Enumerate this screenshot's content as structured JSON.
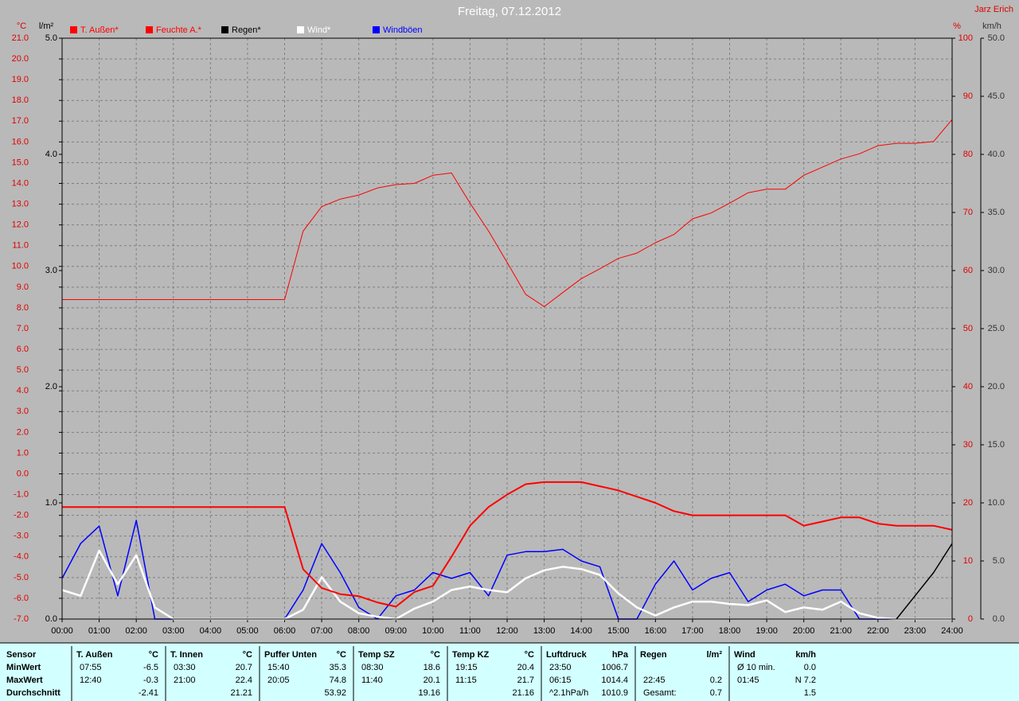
{
  "chart_data": {
    "type": "line",
    "title": "Freitag, 07.12.2012",
    "author": "Jarz Erich",
    "ylabel": "°C",
    "y2label": "%",
    "y3label": "km/h",
    "y4label": "l/m²",
    "grid": true,
    "x": [
      0,
      0.5,
      1,
      1.5,
      2,
      2.5,
      3,
      3.5,
      4,
      4.5,
      5,
      5.5,
      6,
      6.5,
      7,
      7.5,
      8,
      8.5,
      9,
      9.5,
      10,
      10.5,
      11,
      11.5,
      12,
      12.5,
      13,
      13.5,
      14,
      14.5,
      15,
      15.5,
      16,
      16.5,
      17,
      17.5,
      18,
      18.5,
      19,
      19.5,
      20,
      20.5,
      21,
      21.5,
      22,
      22.5,
      23,
      23.5,
      24
    ],
    "xlim": [
      0,
      24
    ],
    "xticks": [
      {
        "value": 0,
        "label": "00:00"
      },
      {
        "value": 1,
        "label": "01:00"
      },
      {
        "value": 2,
        "label": "02:00"
      },
      {
        "value": 3,
        "label": "03:00"
      },
      {
        "value": 4,
        "label": "04:00"
      },
      {
        "value": 5,
        "label": "05:00"
      },
      {
        "value": 6,
        "label": "06:00"
      },
      {
        "value": 7,
        "label": "07:00"
      },
      {
        "value": 8,
        "label": "08:00"
      },
      {
        "value": 9,
        "label": "09:00"
      },
      {
        "value": 10,
        "label": "10:00"
      },
      {
        "value": 11,
        "label": "11:00"
      },
      {
        "value": 12,
        "label": "12:00"
      },
      {
        "value": 13,
        "label": "13:00"
      },
      {
        "value": 14,
        "label": "14:00"
      },
      {
        "value": 15,
        "label": "15:00"
      },
      {
        "value": 16,
        "label": "16:00"
      },
      {
        "value": 17,
        "label": "17:00"
      },
      {
        "value": 18,
        "label": "18:00"
      },
      {
        "value": 19,
        "label": "19:00"
      },
      {
        "value": 20,
        "label": "20:00"
      },
      {
        "value": 21,
        "label": "21:00"
      },
      {
        "value": 22,
        "label": "22:00"
      },
      {
        "value": 23,
        "label": "23:00"
      },
      {
        "value": 24,
        "label": "24:00"
      }
    ],
    "ylim": [
      -7,
      21
    ],
    "yticks": [
      {
        "value": -7,
        "label": "-7.0"
      },
      {
        "value": -6,
        "label": "-6.0"
      },
      {
        "value": -5,
        "label": "-5.0"
      },
      {
        "value": -4,
        "label": "-4.0"
      },
      {
        "value": -3,
        "label": "-3.0"
      },
      {
        "value": -2,
        "label": "-2.0"
      },
      {
        "value": -1,
        "label": "-1.0"
      },
      {
        "value": 0,
        "label": "0.0"
      },
      {
        "value": 1,
        "label": "1.0"
      },
      {
        "value": 2,
        "label": "2.0"
      },
      {
        "value": 3,
        "label": "3.0"
      },
      {
        "value": 4,
        "label": "4.0"
      },
      {
        "value": 5,
        "label": "5.0"
      },
      {
        "value": 6,
        "label": "6.0"
      },
      {
        "value": 7,
        "label": "7.0"
      },
      {
        "value": 8,
        "label": "8.0"
      },
      {
        "value": 9,
        "label": "9.0"
      },
      {
        "value": 10,
        "label": "10.0"
      },
      {
        "value": 11,
        "label": "11.0"
      },
      {
        "value": 12,
        "label": "12.0"
      },
      {
        "value": 13,
        "label": "13.0"
      },
      {
        "value": 14,
        "label": "14.0"
      },
      {
        "value": 15,
        "label": "15.0"
      },
      {
        "value": 16,
        "label": "16.0"
      },
      {
        "value": 17,
        "label": "17.0"
      },
      {
        "value": 18,
        "label": "18.0"
      },
      {
        "value": 19,
        "label": "19.0"
      },
      {
        "value": 20,
        "label": "20.0"
      },
      {
        "value": 21,
        "label": "21.0"
      }
    ],
    "y2lim": [
      0,
      100
    ],
    "y2ticks": [
      0,
      10,
      20,
      30,
      40,
      50,
      60,
      70,
      80,
      90,
      100
    ],
    "y3lim": [
      0,
      50
    ],
    "y3ticks": [
      {
        "value": 0,
        "label": "0.0"
      },
      {
        "value": 5,
        "label": "5.0"
      },
      {
        "value": 10,
        "label": "10.0"
      },
      {
        "value": 15,
        "label": "15.0"
      },
      {
        "value": 20,
        "label": "20.0"
      },
      {
        "value": 25,
        "label": "25.0"
      },
      {
        "value": 30,
        "label": "30.0"
      },
      {
        "value": 35,
        "label": "35.0"
      },
      {
        "value": 40,
        "label": "40.0"
      },
      {
        "value": 45,
        "label": "45.0"
      },
      {
        "value": 50,
        "label": "50.0"
      }
    ],
    "y4lim": [
      0,
      5
    ],
    "y4ticks": [
      {
        "value": 0,
        "label": "0.0"
      },
      {
        "value": 1,
        "label": "1.0"
      },
      {
        "value": 2,
        "label": "2.0"
      },
      {
        "value": 3,
        "label": "3.0"
      },
      {
        "value": 4,
        "label": "4.0"
      },
      {
        "value": 5,
        "label": "5.0"
      }
    ],
    "series": [
      {
        "name": "T. Außen*",
        "color": "#ff0000",
        "axis": "y",
        "values": [
          -1.6,
          -1.6,
          -1.6,
          -1.6,
          -1.6,
          -1.6,
          -1.6,
          -1.6,
          -1.6,
          -1.6,
          -1.6,
          -1.6,
          -1.6,
          -4.6,
          -5.5,
          -5.8,
          -5.9,
          -6.2,
          -6.4,
          -5.7,
          -5.4,
          -4.0,
          -2.5,
          -1.6,
          -1.0,
          -0.5,
          -0.4,
          -0.4,
          -0.4,
          -0.6,
          -0.8,
          -1.1,
          -1.4,
          -1.8,
          -2.0,
          -2.0,
          -2.0,
          -2.0,
          -2.0,
          -2.0,
          -2.5,
          -2.3,
          -2.1,
          -2.1,
          -2.4,
          -2.5,
          -2.5,
          -2.5,
          -2.7
        ]
      },
      {
        "name": "Feuchte A.*",
        "color": "#ff0000",
        "axis": "y2",
        "values": [
          55,
          55,
          55,
          55,
          55,
          55,
          55,
          55,
          55,
          55,
          55,
          55,
          55,
          66.8,
          71,
          72.3,
          73,
          74.2,
          74.8,
          75,
          76.4,
          76.8,
          71.6,
          66.8,
          61.4,
          55.9,
          53.8,
          56.2,
          58.6,
          60.3,
          62.1,
          63,
          64.8,
          66.2,
          68.9,
          69.9,
          71.6,
          73.4,
          74,
          74,
          76.4,
          77.8,
          79.2,
          80.1,
          81.5,
          81.9,
          81.9,
          82.2,
          86
        ]
      },
      {
        "name": "Regen*",
        "color": "#000000",
        "axis": "y4",
        "values": [
          null,
          null,
          null,
          null,
          null,
          null,
          null,
          null,
          null,
          null,
          null,
          null,
          null,
          null,
          null,
          null,
          null,
          null,
          null,
          null,
          null,
          null,
          null,
          null,
          null,
          null,
          null,
          null,
          null,
          null,
          null,
          null,
          null,
          null,
          null,
          null,
          null,
          null,
          null,
          null,
          null,
          null,
          null,
          null,
          null,
          0,
          0.2,
          0.4,
          0.65
        ]
      },
      {
        "name": "Wind*",
        "color": "#ffffff",
        "axis": "y3",
        "values": [
          2.5,
          2.0,
          5.9,
          3.0,
          5.5,
          1.0,
          0,
          0,
          0,
          0,
          0,
          0,
          0,
          0.8,
          3.6,
          1.5,
          0.5,
          0.2,
          0,
          0.9,
          1.5,
          2.5,
          2.8,
          2.5,
          2.3,
          3.5,
          4.2,
          4.5,
          4.3,
          3.8,
          2.2,
          1.0,
          0.3,
          1.0,
          1.5,
          1.5,
          1.3,
          1.2,
          1.6,
          0.6,
          1.0,
          0.8,
          1.5,
          0.5,
          0.1,
          0,
          0,
          0,
          0
        ]
      },
      {
        "name": "Windböen",
        "color": "#0000ff",
        "axis": "y3",
        "values": [
          3.5,
          6.5,
          8.0,
          2.0,
          8.5,
          0,
          0,
          0,
          0,
          0,
          0,
          0,
          0,
          2.5,
          6.5,
          4.0,
          1.0,
          0,
          2.0,
          2.5,
          4.0,
          3.5,
          4.0,
          2.0,
          5.5,
          5.8,
          5.8,
          6.0,
          5.0,
          4.5,
          0,
          0,
          3.0,
          5.0,
          2.5,
          3.5,
          4.0,
          1.5,
          2.5,
          3.0,
          2.0,
          2.5,
          2.5,
          0,
          0,
          0,
          0,
          0,
          0
        ]
      }
    ]
  },
  "table": {
    "row_labels": [
      "Sensor",
      "MinWert",
      "MaxWert",
      "Durchschnitt"
    ],
    "groups": [
      {
        "title": "T. Außen",
        "unit": "°C",
        "rows": [
          {
            "time": "07:55",
            "value": "-6.5"
          },
          {
            "time": "12:40",
            "value": "-0.3"
          },
          {
            "value": "-2.41"
          }
        ]
      },
      {
        "title": "T. Innen",
        "unit": "°C",
        "rows": [
          {
            "time": "03:30",
            "value": "20.7"
          },
          {
            "time": "21:00",
            "value": "22.4"
          },
          {
            "value": "21.21"
          }
        ]
      },
      {
        "title": "Puffer Unten",
        "unit": "°C",
        "rows": [
          {
            "time": "15:40",
            "value": "35.3"
          },
          {
            "time": "20:05",
            "value": "74.8"
          },
          {
            "value": "53.92"
          }
        ]
      },
      {
        "title": "Temp SZ",
        "unit": "°C",
        "rows": [
          {
            "time": "08:30",
            "value": "18.6"
          },
          {
            "time": "11:40",
            "value": "20.1"
          },
          {
            "value": "19.16"
          }
        ]
      },
      {
        "title": "Temp KZ",
        "unit": "°C",
        "rows": [
          {
            "time": "19:15",
            "value": "20.4"
          },
          {
            "time": "11:15",
            "value": "21.7"
          },
          {
            "value": "21.16"
          }
        ]
      },
      {
        "title": "Luftdruck",
        "unit": "hPa",
        "rows": [
          {
            "time": "23:50",
            "value": "1006.7"
          },
          {
            "time": "06:15",
            "value": "1014.4"
          },
          {
            "time": "^2.1hPa/h",
            "value": "1010.9"
          }
        ]
      },
      {
        "title": "Regen",
        "unit": "l/m²",
        "rows": [
          null,
          {
            "time": "22:45",
            "value": "0.2"
          },
          {
            "time": "Gesamt:",
            "value": "0.7"
          }
        ]
      },
      {
        "title": "Wind",
        "unit": "km/h",
        "rows": [
          {
            "time": "Ø 10 min.",
            "value": "0.0"
          },
          {
            "time": "01:45",
            "value": "N 7.2"
          },
          {
            "value": "1.5"
          }
        ]
      }
    ]
  }
}
